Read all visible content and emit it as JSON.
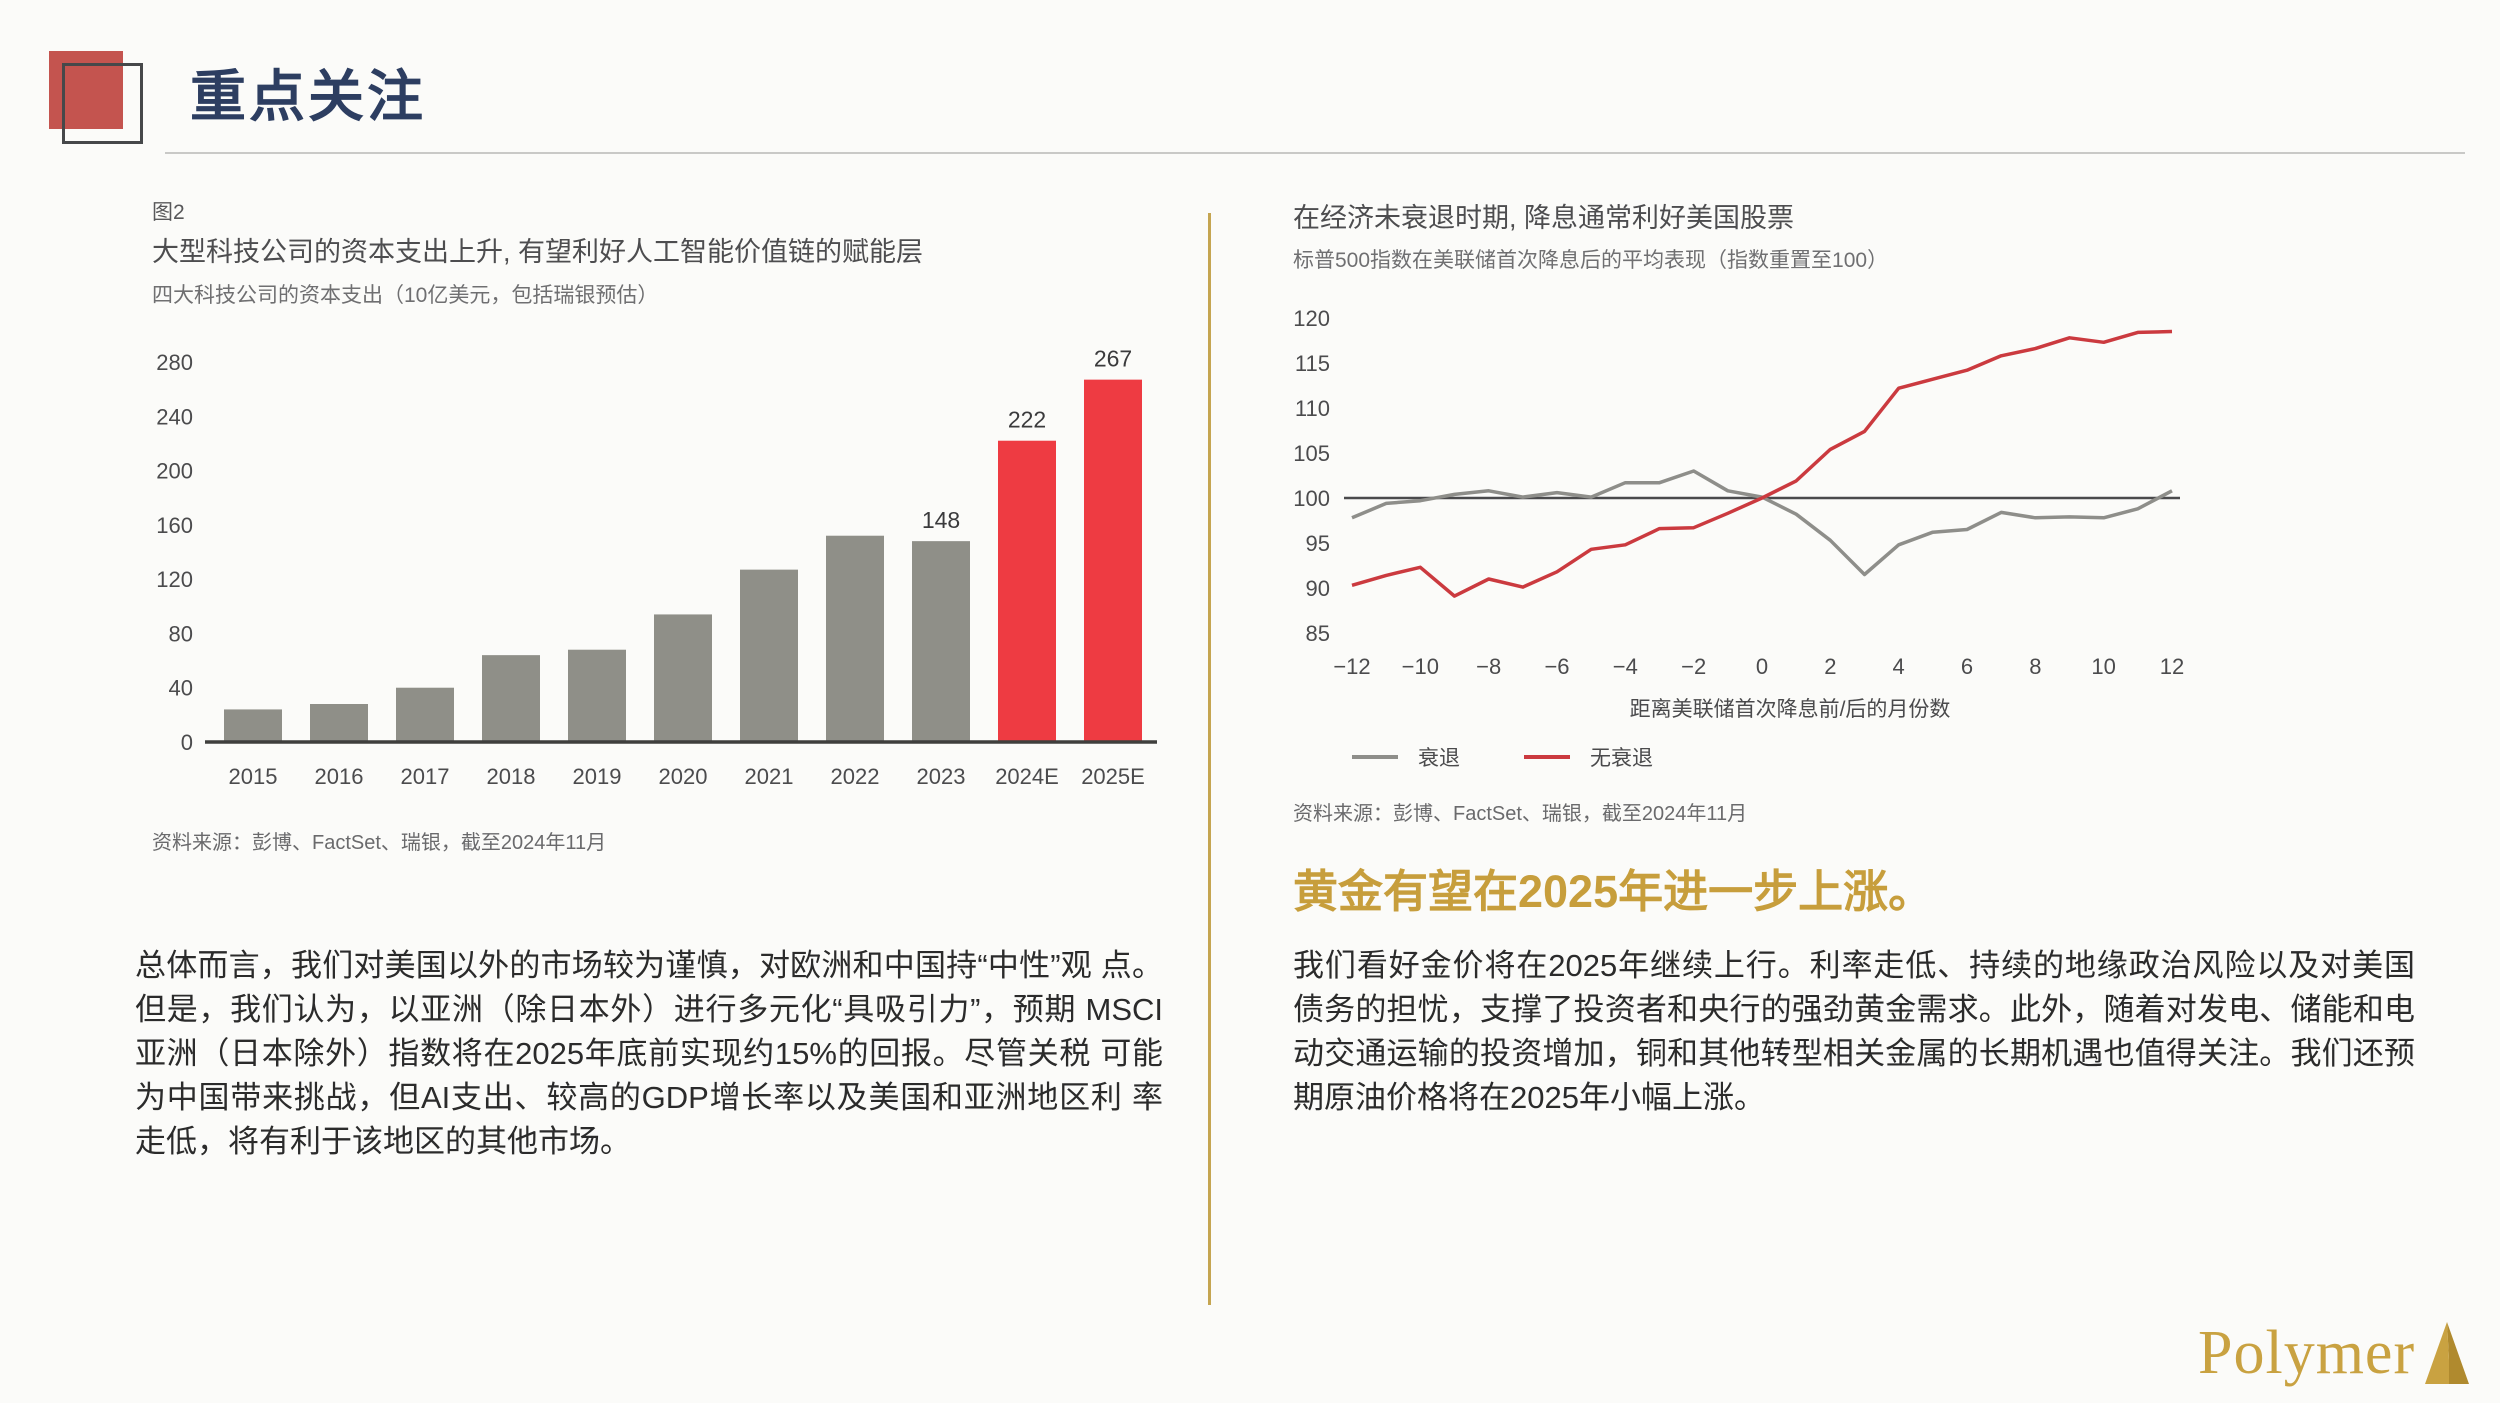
{
  "page": {
    "title": "重点关注",
    "logo_text": "Polymer"
  },
  "colors": {
    "background": "#FBFBF9",
    "title_navy": "#2D3E61",
    "deco_red": "#C4544F",
    "deco_outline": "#46484A",
    "gold_divider": "#C5A551",
    "gold_heading": "#C79E3C",
    "logo_gold": "#C9A241",
    "bar_gray": "#8F8F88",
    "bar_red": "#EE3B42",
    "line_gray": "#8E8E8A",
    "line_red": "#CB3A3F",
    "axis_dark": "#3F3F3D",
    "tick_text": "#4B4B4D"
  },
  "left_figure": {
    "fig_label": "图2",
    "title": "大型科技公司的资本支出上升, 有望利好人工智能价值链的赋能层",
    "subtitle": "四大科技公司的资本支出（10亿美元，包括瑞银预估）",
    "source": "资料来源：彭博、FactSet、瑞银，截至2024年11月"
  },
  "right_figure": {
    "title": "在经济未衰退时期, 降息通常利好美国股票",
    "subtitle": "标普500指数在美联储首次降息后的平均表现（指数重置至100）",
    "xlabel": "距离美联储首次降息前/后的月份数",
    "legend": [
      "衰退",
      "无衰退"
    ],
    "source": "资料来源：彭博、FactSet、瑞银，截至2024年11月"
  },
  "left_text": "总体而言，我们对美国以外的市场较为谨慎，对欧洲和中国持“中性”观 点。但是，我们认为，以亚洲（除日本外）进行多元化“具吸引力”，预期 MSCI亚洲（日本除外）指数将在2025年底前实现约15%的回报。尽管关税 可能为中国带来挑战，但AI支出、较高的GDP增长率以及美国和亚洲地区利 率走低，将有利于该地区的其他市场。",
  "right_heading": "黄金有望在2025年进一步上涨。",
  "right_text": "我们看好金价将在2025年继续上行。利率走低、持续的地缘政治风险以及对美国债务的担忧，支撑了投资者和央行的强劲黄金需求。此外，随着对发电、储能和电动交通运输的投资增加，铜和其他转型相关金属的长期机遇也值得关注。我们还预期原油价格将在2025年小幅上涨。",
  "chart_data": [
    {
      "type": "bar",
      "title": "大型科技公司的资本支出上升, 有望利好人工智能价值链的赋能层",
      "subtitle": "四大科技公司的资本支出（10亿美元，包括瑞银预估）",
      "categories": [
        "2015",
        "2016",
        "2017",
        "2018",
        "2019",
        "2020",
        "2021",
        "2022",
        "2023",
        "2024E",
        "2025E"
      ],
      "values": [
        24,
        28,
        40,
        64,
        68,
        94,
        127,
        152,
        148,
        222,
        267
      ],
      "highlight_from_index": 9,
      "labeled_indices": [
        8,
        9,
        10
      ],
      "ylim": [
        0,
        280
      ],
      "y_ticks": [
        0,
        40,
        80,
        120,
        160,
        200,
        240,
        280
      ],
      "grid": false,
      "legend_position": "none"
    },
    {
      "type": "line",
      "title": "在经济未衰退时期, 降息通常利好美国股票",
      "subtitle": "标普500指数在美联储首次降息后的平均表现（指数重置至100）",
      "x": [
        -12,
        -11,
        -10,
        -9,
        -8,
        -7,
        -6,
        -5,
        -4,
        -3,
        -2,
        -1,
        0,
        1,
        2,
        3,
        4,
        5,
        6,
        7,
        8,
        9,
        10,
        11,
        12
      ],
      "x_ticks": [
        -12,
        -10,
        -8,
        -6,
        -4,
        -2,
        0,
        2,
        4,
        6,
        8,
        10,
        12
      ],
      "series": [
        {
          "name": "衰退",
          "color": "#8E8E8A",
          "values": [
            97.8,
            99.4,
            99.7,
            100.4,
            100.8,
            100.1,
            100.6,
            100.1,
            101.7,
            101.7,
            103.0,
            100.8,
            100.1,
            98.2,
            95.3,
            91.5,
            94.8,
            96.2,
            96.5,
            98.4,
            97.8,
            97.9,
            97.8,
            98.8,
            100.8
          ]
        },
        {
          "name": "无衰退",
          "color": "#CB3A3F",
          "values": [
            90.3,
            91.4,
            92.3,
            89.1,
            91.0,
            90.1,
            91.8,
            94.3,
            94.8,
            96.6,
            96.7,
            98.3,
            100.0,
            101.9,
            105.4,
            107.4,
            112.2,
            113.2,
            114.2,
            115.8,
            116.6,
            117.8,
            117.3,
            118.4,
            118.5
          ]
        }
      ],
      "ylim": [
        85,
        120
      ],
      "y_ticks": [
        85,
        90,
        95,
        100,
        105,
        110,
        115,
        120
      ],
      "baseline": 100,
      "xlabel": "距离美联储首次降息前/后的月份数",
      "grid": false,
      "legend_position": "bottom-left"
    }
  ]
}
